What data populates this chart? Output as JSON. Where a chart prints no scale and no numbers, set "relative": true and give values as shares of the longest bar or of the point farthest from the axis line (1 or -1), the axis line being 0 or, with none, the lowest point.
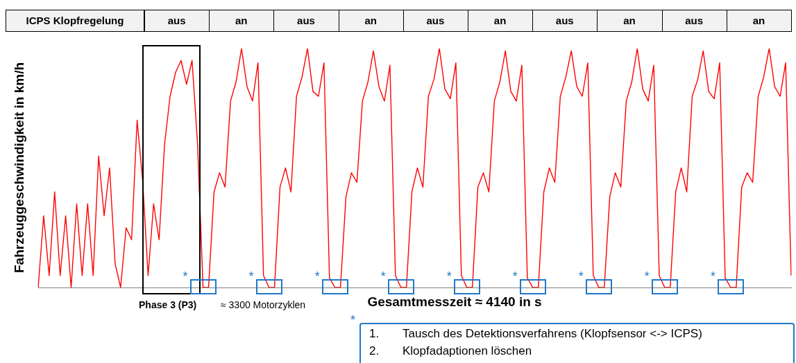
{
  "chart_data": {
    "type": "line",
    "relative": true,
    "color": "#ff0000",
    "ylabel": "Fahrzeuggeschwindigkeit in km/h",
    "xlabel": "Gesamtmesszeit ≈ 4140 in s",
    "categories": [
      null,
      null,
      null,
      null,
      null,
      null,
      null,
      null,
      null,
      null,
      null,
      null,
      null,
      null,
      null,
      null,
      null,
      null,
      null,
      null,
      null,
      null,
      null,
      null,
      null,
      null,
      null,
      null,
      null,
      null,
      null,
      null,
      null,
      null,
      null,
      null,
      null,
      null,
      null,
      null,
      null,
      null,
      null,
      null,
      null,
      null,
      null,
      null,
      null,
      null,
      null,
      null,
      null,
      null,
      null,
      null,
      null,
      null,
      null,
      null,
      null,
      null,
      null,
      null,
      null,
      null,
      null,
      null,
      null,
      null,
      null,
      null,
      null,
      null,
      null,
      null,
      null,
      null,
      null,
      null,
      null,
      null,
      null,
      null,
      null,
      null,
      null,
      null,
      null,
      null,
      null,
      null,
      null,
      null,
      null,
      null,
      null,
      null,
      null,
      null,
      null,
      null,
      null,
      null,
      null,
      null,
      null,
      null,
      null,
      null,
      null,
      null,
      null,
      null,
      null,
      null,
      null,
      null,
      null,
      null,
      null,
      null,
      null,
      null,
      null,
      null,
      null,
      null,
      null,
      null,
      null,
      null,
      null,
      null,
      null,
      null,
      null,
      null
    ],
    "values": [
      0,
      0.3,
      0.05,
      0.4,
      0.05,
      0.3,
      0,
      0.35,
      0.05,
      0.35,
      0.05,
      0.55,
      0.3,
      0.5,
      0.1,
      0,
      0.25,
      0.2,
      0.7,
      0.45,
      0.05,
      0.35,
      0.2,
      0.6,
      0.8,
      0.9,
      0.95,
      0.85,
      0.95,
      0.6,
      0,
      0,
      0.4,
      0.48,
      0.42,
      0.78,
      0.86,
      1,
      0.84,
      0.78,
      0.94,
      0.05,
      0,
      0,
      0.42,
      0.5,
      0.4,
      0.8,
      0.88,
      1,
      0.82,
      0.8,
      0.94,
      0.04,
      0,
      0,
      0.38,
      0.48,
      0.44,
      0.78,
      0.86,
      0.99,
      0.84,
      0.78,
      0.93,
      0.05,
      0,
      0,
      0.4,
      0.5,
      0.42,
      0.8,
      0.87,
      1,
      0.83,
      0.79,
      0.94,
      0.05,
      0,
      0,
      0.42,
      0.48,
      0.4,
      0.78,
      0.86,
      0.99,
      0.82,
      0.78,
      0.93,
      0.04,
      0,
      0,
      0.4,
      0.5,
      0.44,
      0.8,
      0.88,
      0.99,
      0.84,
      0.8,
      0.94,
      0.05,
      0,
      0,
      0.38,
      0.48,
      0.42,
      0.78,
      0.86,
      1,
      0.83,
      0.78,
      0.93,
      0.05,
      0,
      0,
      0.4,
      0.5,
      0.4,
      0.8,
      0.87,
      0.99,
      0.82,
      0.79,
      0.94,
      0.04,
      0,
      0,
      0.42,
      0.48,
      0.44,
      0.8,
      0.88,
      1,
      0.84,
      0.8,
      0.94,
      0.05
    ],
    "annotations": [
      "ICPS Klopfregelung",
      "aus",
      "an",
      "aus",
      "an",
      "aus",
      "an",
      "aus",
      "an",
      "aus",
      "an",
      "Phase 3 (P3)",
      "≈ 3300 Motorzyklen",
      "*",
      "*",
      "*",
      "*",
      "*",
      "*",
      "*",
      "*",
      "*",
      "*",
      "1.",
      "Tausch des Detektionsverfahrens (Klopfsensor <-> ICPS)",
      "2.",
      "Klopfadaptionen löschen"
    ]
  }
}
